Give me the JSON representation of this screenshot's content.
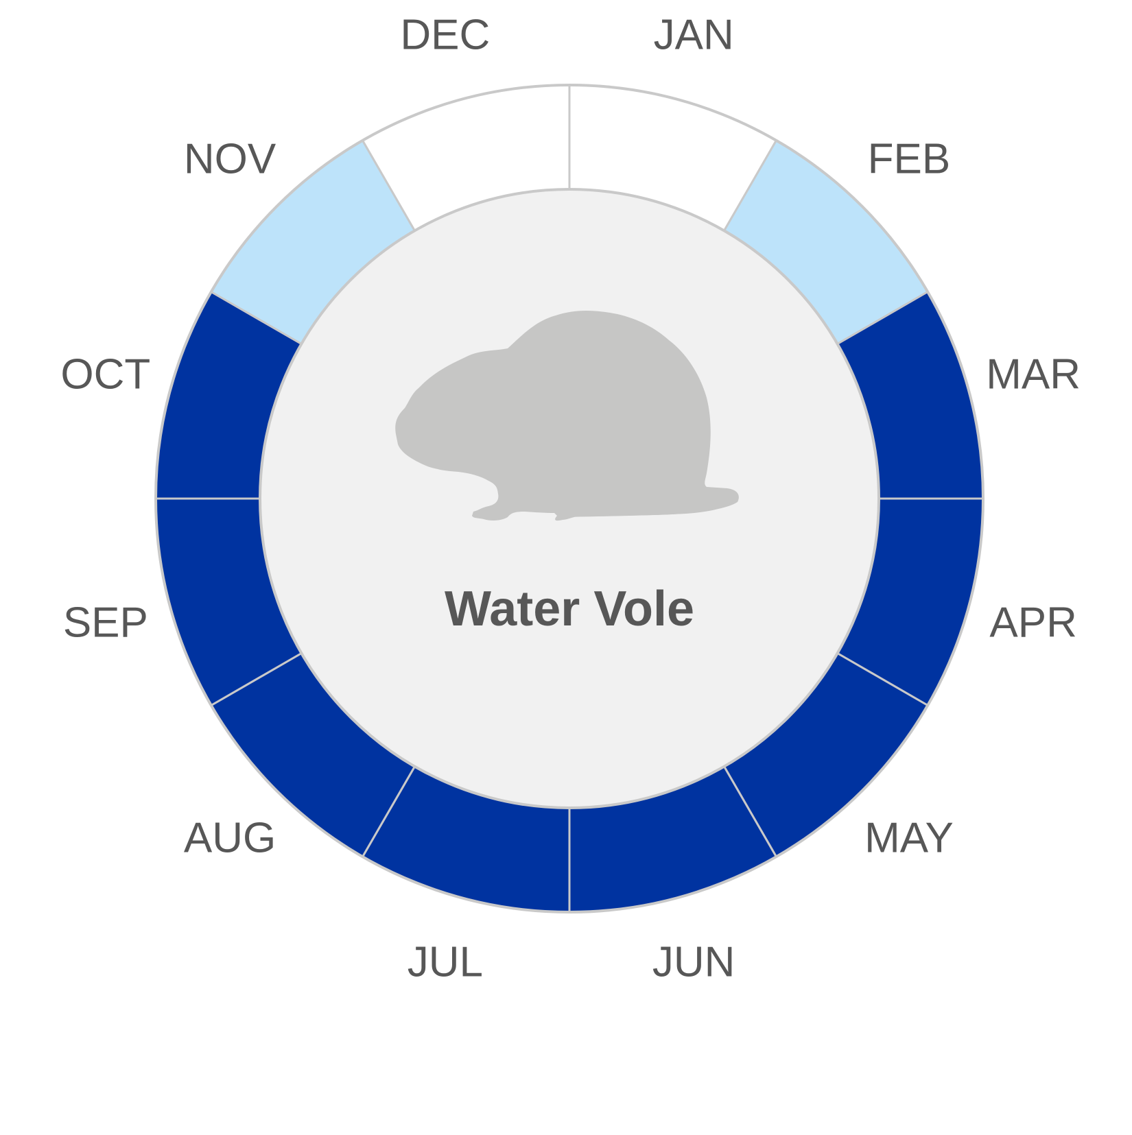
{
  "species": {
    "name": "Water Vole",
    "icon": "water-vole-silhouette-icon"
  },
  "legend_colors": {
    "active": "#0033a0",
    "partial": "#bde3fa",
    "inactive": "#ffffff",
    "center_fill": "#f1f1f1",
    "divider": "#c9c9c9",
    "label_text": "#575757",
    "silhouette": "#c6c6c5"
  },
  "months": [
    {
      "label": "JAN",
      "status": "inactive"
    },
    {
      "label": "FEB",
      "status": "partial"
    },
    {
      "label": "MAR",
      "status": "active"
    },
    {
      "label": "APR",
      "status": "active"
    },
    {
      "label": "MAY",
      "status": "active"
    },
    {
      "label": "JUN",
      "status": "active"
    },
    {
      "label": "JUL",
      "status": "active"
    },
    {
      "label": "AUG",
      "status": "active"
    },
    {
      "label": "SEP",
      "status": "active"
    },
    {
      "label": "OCT",
      "status": "active"
    },
    {
      "label": "NOV",
      "status": "partial"
    },
    {
      "label": "DEC",
      "status": "inactive"
    }
  ]
}
